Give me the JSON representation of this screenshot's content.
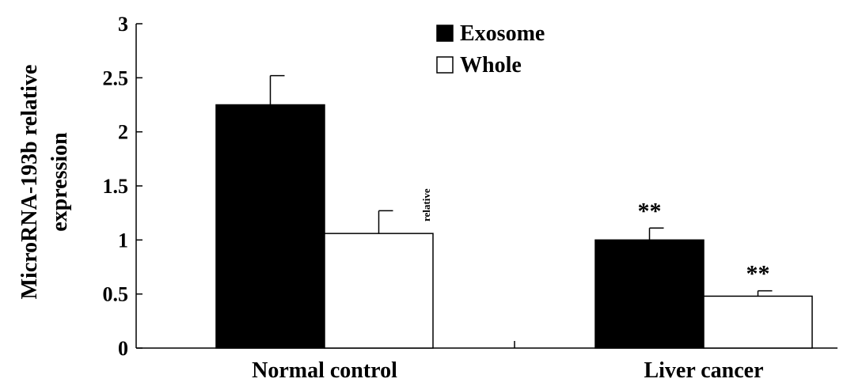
{
  "chart_data": {
    "type": "bar",
    "title": "",
    "xlabel": "",
    "ylabel": "MicroRNA-193b relative expression",
    "ylabel_lines": [
      "MicroRNA-193b relative",
      "expression"
    ],
    "ylim": [
      0,
      3
    ],
    "yticks": [
      0,
      0.5,
      1,
      1.5,
      2,
      2.5,
      3
    ],
    "ytick_labels": [
      "0",
      "0.5",
      "1",
      "1.5",
      "2",
      "2.5",
      "3"
    ],
    "categories": [
      "Normal  control",
      "Liver cancer"
    ],
    "series": [
      {
        "name": "Exosome",
        "color": "#000000",
        "values": [
          2.25,
          1.0
        ],
        "errors": [
          0.27,
          0.11
        ]
      },
      {
        "name": "Whole",
        "color": "#ffffff",
        "values": [
          1.06,
          0.48
        ],
        "errors": [
          0.21,
          0.05
        ]
      }
    ],
    "significance": [
      {
        "category": 1,
        "series": 0,
        "label": "**"
      },
      {
        "category": 1,
        "series": 1,
        "label": "**"
      }
    ],
    "annotation": "relative",
    "legend": "top-center",
    "grid": false
  }
}
